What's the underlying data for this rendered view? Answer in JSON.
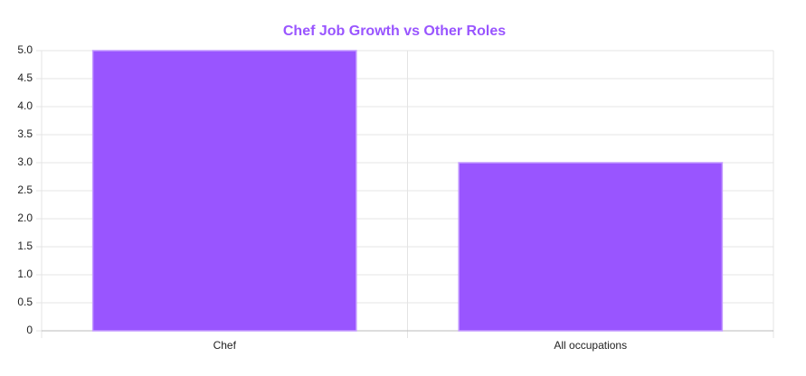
{
  "chart_data": {
    "type": "bar",
    "title": "Chef Job Growth vs Other Roles",
    "categories": [
      "Chef",
      "All occupations"
    ],
    "values": [
      5,
      3
    ],
    "color": "#9955ff",
    "ylim": [
      0,
      5
    ],
    "yticks": [
      0,
      0.5,
      {
        "value": 1,
        "label": "1.0"
      },
      1.5,
      {
        "value": 2,
        "label": "2.0"
      },
      2.5,
      {
        "value": 3,
        "label": "3.0"
      },
      3.5,
      {
        "value": 4,
        "label": "4.0"
      },
      4.5,
      {
        "value": 5,
        "label": "5.0"
      }
    ],
    "grid": true
  }
}
